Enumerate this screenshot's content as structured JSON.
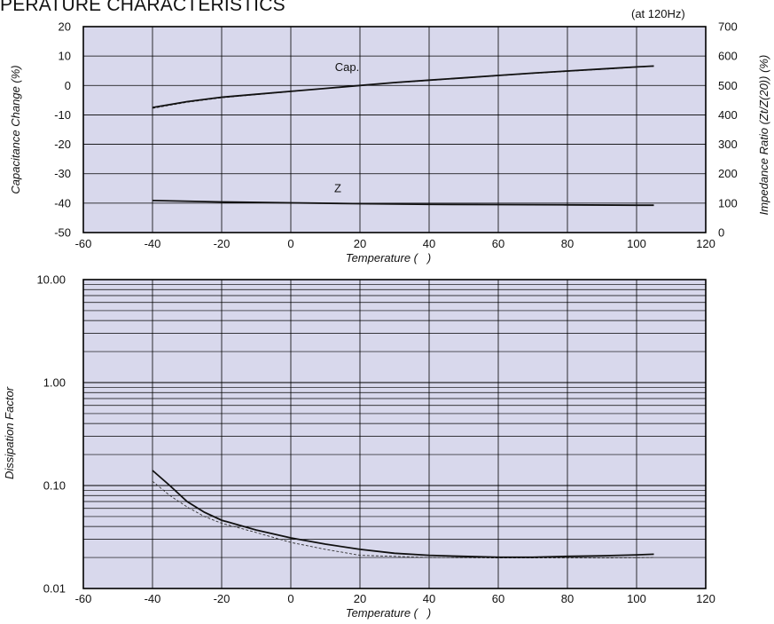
{
  "page": {
    "title": "PERATURE CHARACTERISTICS",
    "condition": "(at 120Hz)"
  },
  "chart_data": [
    {
      "type": "line",
      "x_ticks": [
        "-60",
        "-40",
        "-20",
        "0",
        "20",
        "40",
        "60",
        "80",
        "100",
        "120"
      ],
      "y_ticks": [
        "20",
        "10",
        "0",
        "-10",
        "-20",
        "-30",
        "-40",
        "-50"
      ],
      "y2_ticks": [
        "700",
        "600",
        "500",
        "400",
        "300",
        "200",
        "100",
        "0"
      ],
      "xlabel": "Temperature (   )",
      "ylabel": "Capacitance Change (%)",
      "y2label": "Impedance Ratio (Zt/Z(20)) (%)",
      "xlim": [
        -60,
        120
      ],
      "ylim": [
        -50,
        20
      ],
      "y2lim": [
        0,
        700
      ],
      "grid": true,
      "background": "#d8d8ec",
      "series": [
        {
          "name": "Cap.",
          "axis": "left",
          "x": [
            -40,
            -30,
            -20,
            -10,
            0,
            10,
            20,
            30,
            40,
            50,
            60,
            70,
            80,
            90,
            100,
            105
          ],
          "values": [
            -7.5,
            -5.5,
            -4.0,
            -3.0,
            -2.0,
            -1.0,
            0.0,
            1.0,
            1.8,
            2.6,
            3.4,
            4.2,
            4.9,
            5.6,
            6.3,
            6.6
          ],
          "dashed_values": [
            -7.8,
            -5.7,
            -4.2,
            -3.1,
            -2.1,
            -1.0,
            0.0,
            0.9,
            1.7,
            2.5,
            3.3,
            4.1,
            4.8,
            5.5,
            6.2,
            6.5
          ]
        },
        {
          "name": "Z",
          "axis": "right",
          "x": [
            -40,
            -20,
            0,
            20,
            40,
            60,
            80,
            100,
            105
          ],
          "values": [
            109,
            104,
            101,
            98,
            96,
            95,
            94,
            93,
            93
          ]
        }
      ]
    },
    {
      "type": "line",
      "x_ticks": [
        "-60",
        "-40",
        "-20",
        "0",
        "20",
        "40",
        "60",
        "80",
        "100",
        "120"
      ],
      "y_ticks": [
        "10.00",
        "1.00",
        "0.10",
        "0.01"
      ],
      "xlabel": "Temperature (   )",
      "ylabel": "Dissipation Factor",
      "xlim": [
        -60,
        120
      ],
      "ylim": [
        0.01,
        10
      ],
      "yscale": "log",
      "grid": true,
      "background": "#d8d8ec",
      "series": [
        {
          "axis": "left",
          "x": [
            -40,
            -35,
            -30,
            -25,
            -20,
            -10,
            0,
            10,
            20,
            30,
            40,
            50,
            60,
            70,
            80,
            90,
            100,
            105
          ],
          "values": [
            0.14,
            0.1,
            0.07,
            0.055,
            0.046,
            0.037,
            0.031,
            0.027,
            0.024,
            0.022,
            0.021,
            0.0205,
            0.0201,
            0.0201,
            0.0205,
            0.0208,
            0.0212,
            0.0215
          ],
          "dashed_values": [
            0.11,
            0.08,
            0.062,
            0.05,
            0.043,
            0.035,
            0.028,
            0.024,
            0.021,
            0.0205,
            0.02,
            0.0199,
            0.0198,
            0.0198,
            0.0198,
            0.0198,
            0.0199,
            0.02
          ]
        }
      ]
    }
  ]
}
